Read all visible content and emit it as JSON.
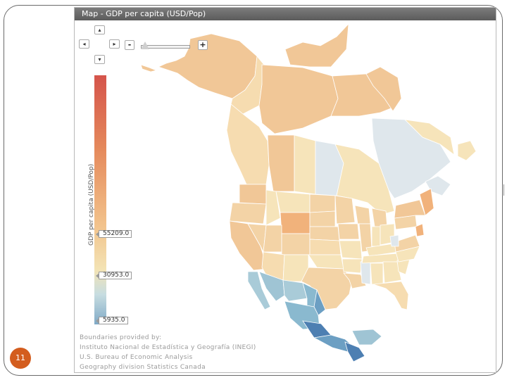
{
  "panel": {
    "title": "Map - GDP per capita (USD/Pop)"
  },
  "nav": {
    "up": "▴",
    "down": "▾",
    "left": "◂",
    "right": "▸",
    "zoom_out": "-",
    "zoom_in": "+"
  },
  "legend": {
    "title": "GDP per capita (USD/Pop)",
    "ticks": [
      "55209.0",
      "30953.0",
      "5935.0"
    ],
    "colors": {
      "high": "#d5544b",
      "mid_high": "#f2c28b",
      "mid": "#f3e3b4",
      "mid_low": "#c7dde1",
      "low": "#4d7fb2"
    }
  },
  "credits": {
    "line1": "Boundaries provided by:",
    "line2": "Instituto Nacional de Estadística y Geografía (INEGI)",
    "line3": "U.S. Bureau of Economic Analysis",
    "line4": "Geography division Statistics Canada"
  },
  "slide": {
    "page_number": "11"
  }
}
